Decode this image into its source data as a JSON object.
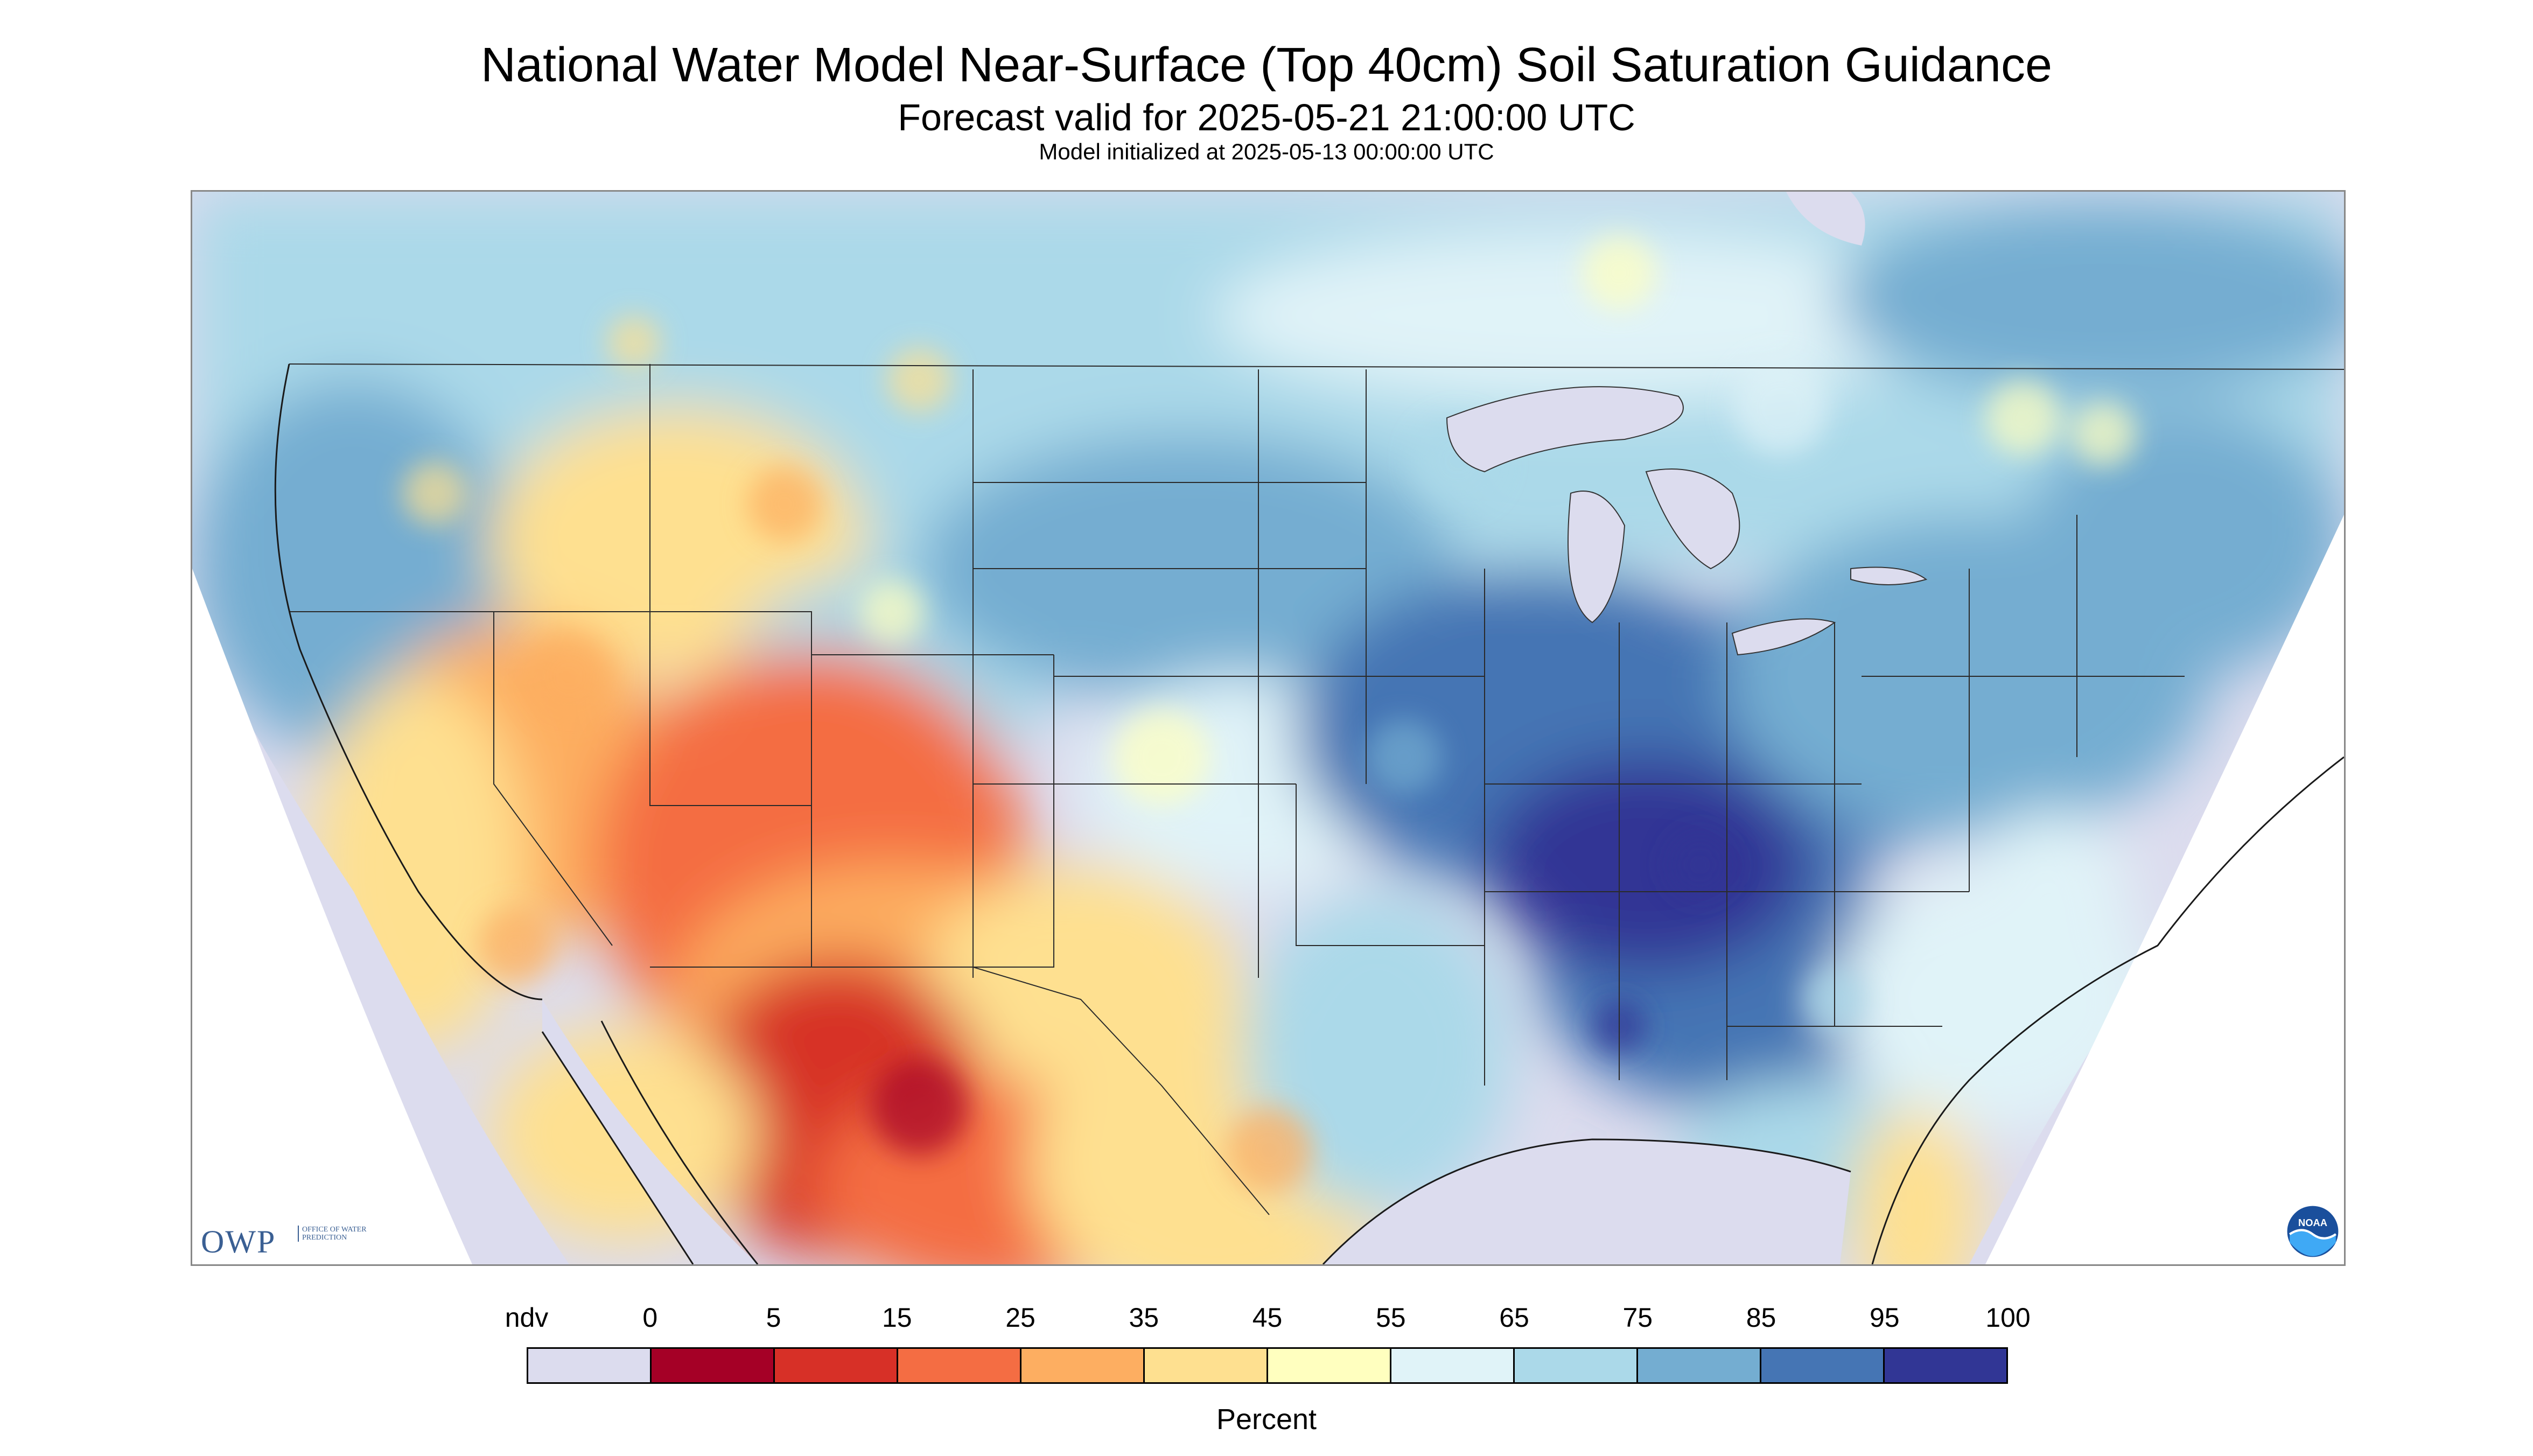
{
  "title": "National Water Model Near-Surface (Top 40cm) Soil Saturation Guidance",
  "subtitle": "Forecast valid for 2025-05-21 21:00:00 UTC",
  "init_line": "Model initialized at 2025-05-13 00:00:00 UTC",
  "logos": {
    "owp_letters": "OWP",
    "owp_text": "OFFICE OF WATER PREDICTION",
    "noaa_text": "NOAA"
  },
  "legend": {
    "unit_label": "Percent",
    "bins": [
      {
        "label": "ndv",
        "color": "#dcdcee"
      },
      {
        "label": "0",
        "color": "#a50026"
      },
      {
        "label": "5",
        "color": "#d73027"
      },
      {
        "label": "15",
        "color": "#f46d43"
      },
      {
        "label": "25",
        "color": "#fdae61"
      },
      {
        "label": "35",
        "color": "#fee090"
      },
      {
        "label": "45",
        "color": "#ffffbf"
      },
      {
        "label": "55",
        "color": "#e0f3f8"
      },
      {
        "label": "65",
        "color": "#abd9e9"
      },
      {
        "label": "75",
        "color": "#74add1"
      },
      {
        "label": "85",
        "color": "#4575b4"
      },
      {
        "label": "95",
        "color": "#313695"
      }
    ],
    "end_label": "100"
  },
  "map": {
    "ndv_color": "#dcdcee",
    "water_color": "#dcdcee",
    "boundary_color": "#333333",
    "patterns": [
      "very dry in Sonoran/Chihuahuan desert",
      "dry in Southwest and Great Basin",
      "moist to saturated in Ohio Valley and Midwest",
      "moderate in Northern Plains and Canada"
    ]
  }
}
